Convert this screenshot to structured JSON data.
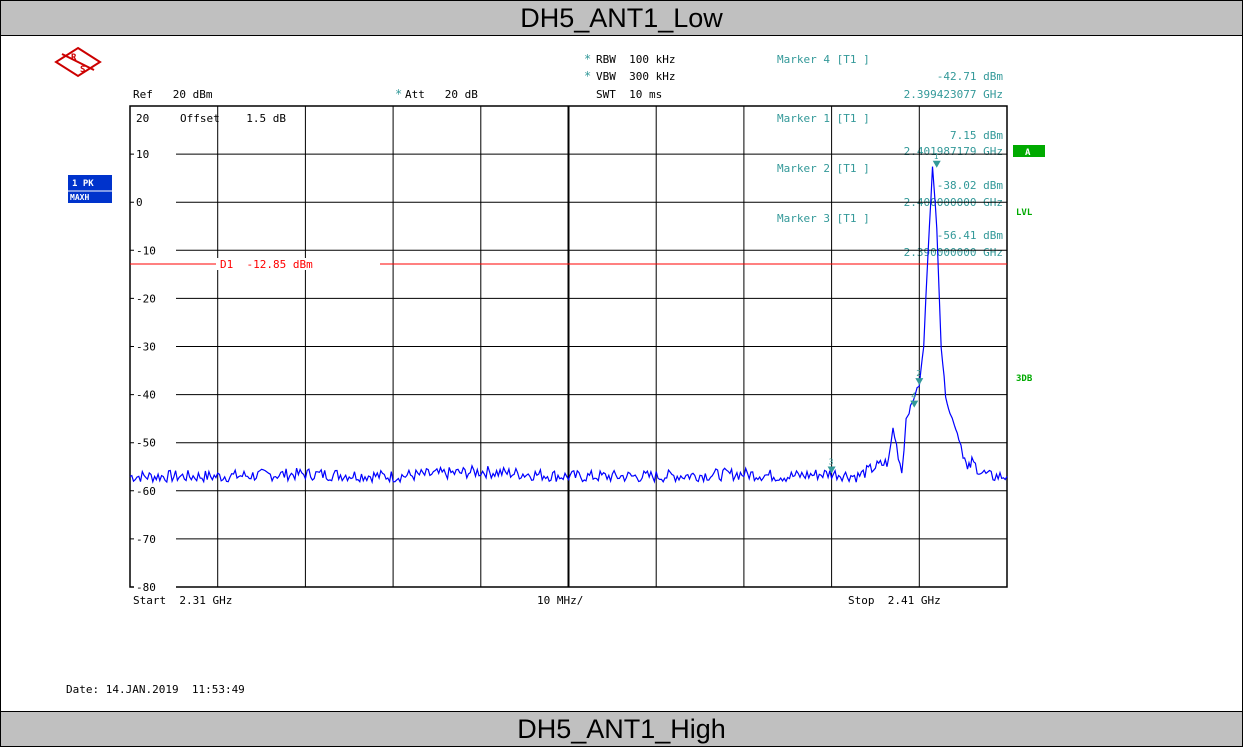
{
  "titles": {
    "top": "DH5_ANT1_Low",
    "bottom": "DH5_ANT1_High"
  },
  "header": {
    "rbw": "RBW  100 kHz",
    "vbw": "VBW  300 kHz",
    "swt": "SWT  10 ms",
    "ref": "Ref   20 dBm",
    "att": "Att   20 dB",
    "offset": "Offset    1.5 dB"
  },
  "markers_readout": [
    {
      "label": "Marker 4 [T1 ]",
      "level": "-42.71 dBm",
      "freq": "2.399423077 GHz"
    },
    {
      "label": "Marker 1 [T1 ]",
      "level": "7.15 dBm",
      "freq": "2.401987179 GHz"
    },
    {
      "label": "Marker 2 [T1 ]",
      "level": "-38.02 dBm",
      "freq": "2.400000000 GHz"
    },
    {
      "label": "Marker 3 [T1 ]",
      "level": "-56.41 dBm",
      "freq": "2.390000000 GHz"
    }
  ],
  "side_labels": {
    "trace1": "1 PK",
    "trace2": "MAXH",
    "a": "A",
    "lvl": "LVL",
    "db3": "3DB"
  },
  "footer": {
    "start": "Start  2.31 GHz",
    "span": "10 MHz/",
    "stop": "Stop  2.41 GHz",
    "date": "Date: 14.JAN.2019  11:53:49"
  },
  "colors": {
    "trace": "#0000ff",
    "marker": "#339999",
    "limit": "#ff0000",
    "badge": "#0033cc",
    "badge_green": "#00aa00"
  },
  "chart_data": {
    "type": "line",
    "title": "",
    "x_unit": "GHz",
    "y_unit": "dBm",
    "xlim": [
      2.31,
      2.41
    ],
    "ylim": [
      -80,
      20
    ],
    "y_ticks": [
      20,
      10,
      0,
      -10,
      -20,
      -30,
      -40,
      -50,
      -60,
      -70,
      -80
    ],
    "y_tick_labels": [
      "20",
      "10",
      "0",
      "-10",
      "-20",
      "-30",
      "-40",
      "-50",
      "-60",
      "-70",
      "-80"
    ],
    "display_line": {
      "name": "D1",
      "value": -12.85,
      "label": "D1  -12.85 dBm"
    },
    "series": [
      {
        "x": [
          2.31,
          2.32,
          2.33,
          2.34,
          2.35,
          2.36,
          2.37,
          2.38,
          2.385,
          2.39,
          2.393,
          2.395,
          2.3965,
          2.397,
          2.398,
          2.3985,
          2.399,
          2.3995,
          2.4,
          2.4005,
          2.401,
          2.4015,
          2.402,
          2.4025,
          2.403,
          2.4035,
          2.404,
          2.4045,
          2.405,
          2.4055,
          2.406,
          2.407,
          2.408,
          2.409,
          2.41
        ],
        "y": [
          -57,
          -57,
          -56.5,
          -57,
          -56,
          -57,
          -57,
          -56.5,
          -57,
          -56.4,
          -57,
          -55,
          -54,
          -47,
          -56,
          -45,
          -42.7,
          -40,
          -38.0,
          -30,
          -10,
          7.15,
          -5,
          -30,
          -40,
          -44,
          -46,
          -49,
          -52,
          -56,
          -54,
          -56,
          -57,
          -57,
          -57
        ]
      }
    ],
    "markers": [
      {
        "name": "1",
        "x": 2.401987179,
        "y": 7.15
      },
      {
        "name": "2",
        "x": 2.4,
        "y": -38.02
      },
      {
        "name": "3",
        "x": 2.39,
        "y": -56.41
      },
      {
        "name": "4",
        "x": 2.399423077,
        "y": -42.71
      }
    ]
  }
}
